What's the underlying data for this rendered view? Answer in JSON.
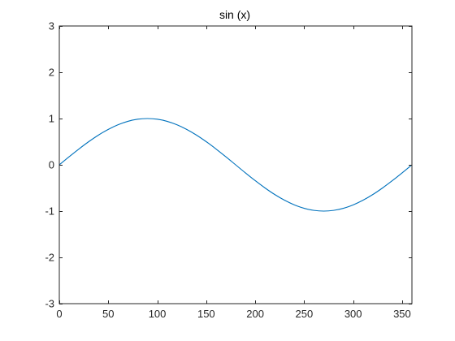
{
  "chart_data": {
    "type": "line",
    "title": "sin (x)",
    "xlabel": "",
    "ylabel": "",
    "xlim": [
      0,
      360
    ],
    "ylim": [
      -3,
      3
    ],
    "xticks": [
      0,
      50,
      100,
      150,
      200,
      250,
      300,
      350
    ],
    "yticks": [
      -3,
      -2,
      -1,
      0,
      1,
      2,
      3
    ],
    "grid": false,
    "legend": "none",
    "series": [
      {
        "color": "#0072BD",
        "function": "sin(x in degrees)",
        "x": [
          0,
          10,
          20,
          30,
          40,
          50,
          60,
          70,
          80,
          90,
          100,
          110,
          120,
          130,
          140,
          150,
          160,
          170,
          180,
          190,
          200,
          210,
          220,
          230,
          240,
          250,
          260,
          270,
          280,
          290,
          300,
          310,
          320,
          330,
          340,
          350,
          360
        ],
        "y": [
          0,
          0.174,
          0.342,
          0.5,
          0.643,
          0.766,
          0.866,
          0.94,
          0.985,
          1,
          0.985,
          0.94,
          0.866,
          0.766,
          0.643,
          0.5,
          0.342,
          0.174,
          0,
          -0.174,
          -0.342,
          -0.5,
          -0.643,
          -0.766,
          -0.866,
          -0.94,
          -0.985,
          -1,
          -0.985,
          -0.94,
          -0.866,
          -0.766,
          -0.643,
          -0.5,
          -0.342,
          -0.174,
          0
        ]
      }
    ]
  },
  "colors": {
    "axes": "#262626",
    "line": "#0072BD",
    "background": "#ffffff"
  }
}
